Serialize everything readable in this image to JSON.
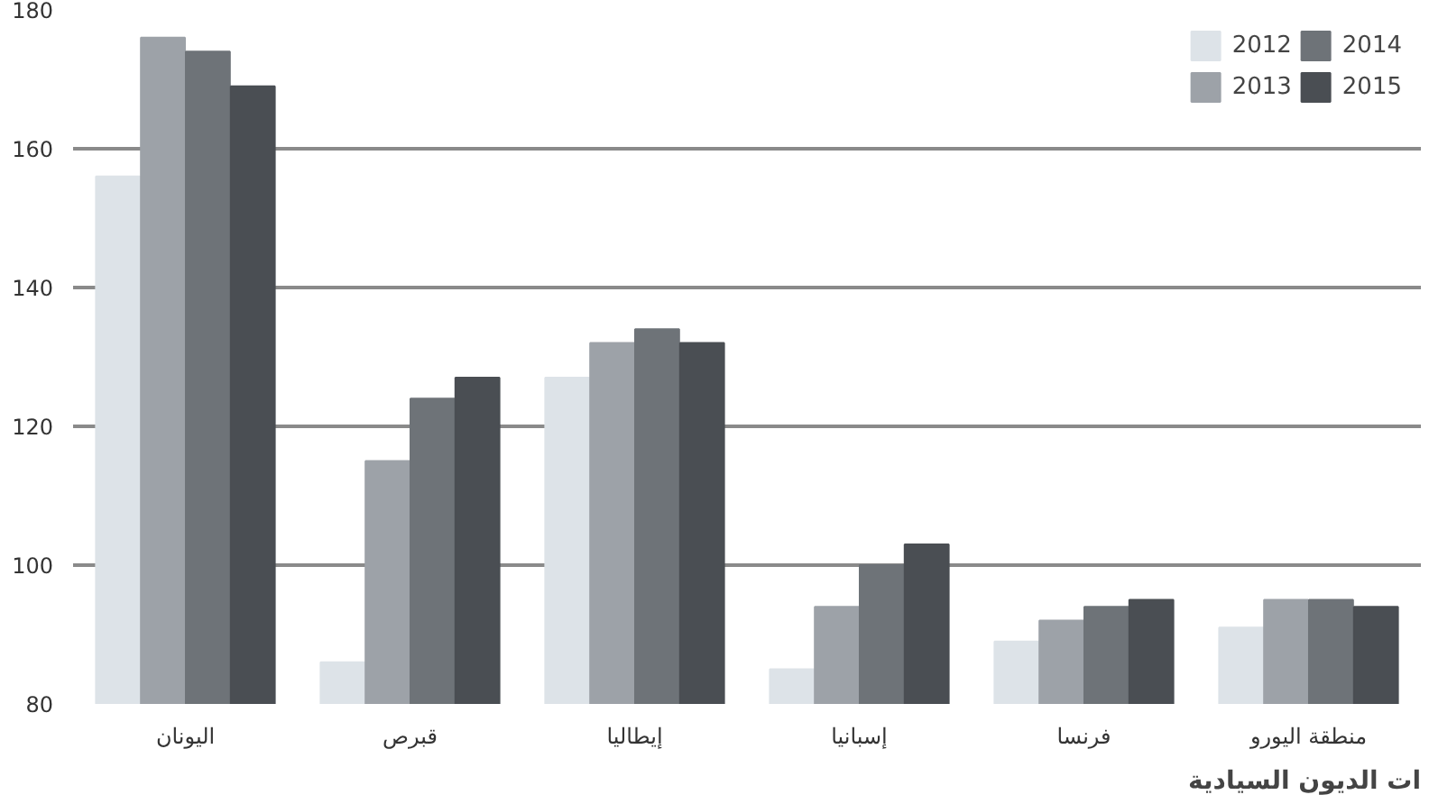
{
  "chart_data": {
    "type": "bar",
    "title": "ات الديون السيادية",
    "categories": [
      "اليونان",
      "قبرص",
      "إيطاليا",
      "إسبانيا",
      "فرنسا",
      "منطقة اليورو"
    ],
    "series": [
      {
        "name": "2012",
        "color": "#dde3e8",
        "values": [
          156,
          86,
          127,
          85,
          89,
          91
        ]
      },
      {
        "name": "2013",
        "color": "#9da2a8",
        "values": [
          176,
          115,
          132,
          94,
          92,
          95
        ]
      },
      {
        "name": "2014",
        "color": "#6e7378",
        "values": [
          174,
          124,
          134,
          100,
          94,
          95
        ]
      },
      {
        "name": "2015",
        "color": "#4a4e53",
        "values": [
          169,
          127,
          132,
          103,
          95,
          94
        ]
      }
    ],
    "ylim": [
      80,
      180
    ],
    "yticks": [
      80,
      100,
      120,
      140,
      160,
      180
    ],
    "grid": "y",
    "legend": "top right"
  }
}
